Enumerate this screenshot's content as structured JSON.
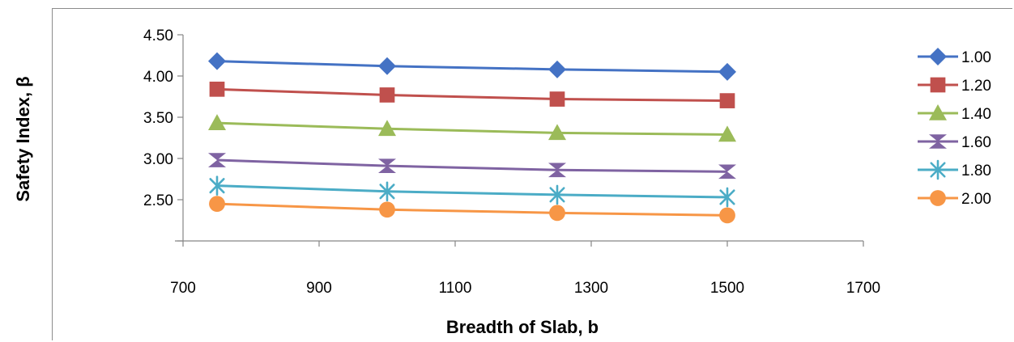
{
  "chart_data": {
    "type": "line",
    "xlabel": "Breadth of Slab, b",
    "ylabel": "Safety Index, β",
    "x_ticks": [
      "700",
      "900",
      "1100",
      "1300",
      "1500",
      "1700"
    ],
    "y_ticks": [
      "2.50",
      "3.00",
      "3.50",
      "4.00",
      "4.50"
    ],
    "xlim": [
      700,
      1700
    ],
    "ylim": [
      2.0,
      4.5
    ],
    "x": [
      750,
      1000,
      1250,
      1500
    ],
    "series": [
      {
        "name": "1.00",
        "color": "#4472c4",
        "marker": "diamond",
        "values": [
          4.18,
          4.12,
          4.08,
          4.05
        ]
      },
      {
        "name": "1.20",
        "color": "#c0504d",
        "marker": "square",
        "values": [
          3.84,
          3.77,
          3.72,
          3.7
        ]
      },
      {
        "name": "1.40",
        "color": "#9bbb59",
        "marker": "triangle",
        "values": [
          3.43,
          3.36,
          3.31,
          3.29
        ]
      },
      {
        "name": "1.60",
        "color": "#7f63a2",
        "marker": "hourglass",
        "values": [
          2.98,
          2.91,
          2.86,
          2.84
        ]
      },
      {
        "name": "1.80",
        "color": "#4bacc6",
        "marker": "asterisk",
        "values": [
          2.67,
          2.6,
          2.56,
          2.53
        ]
      },
      {
        "name": "2.00",
        "color": "#f79646",
        "marker": "circle",
        "values": [
          2.45,
          2.38,
          2.34,
          2.31
        ]
      }
    ],
    "legend": "right",
    "grid": false
  }
}
